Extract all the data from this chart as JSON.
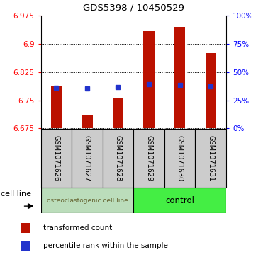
{
  "title": "GDS5398 / 10450529",
  "samples": [
    "GSM1071626",
    "GSM1071627",
    "GSM1071628",
    "GSM1071629",
    "GSM1071630",
    "GSM1071631"
  ],
  "bar_bottoms": [
    6.675,
    6.675,
    6.675,
    6.675,
    6.675,
    6.675
  ],
  "bar_tops": [
    6.787,
    6.712,
    6.756,
    6.933,
    6.944,
    6.875
  ],
  "blue_values": [
    6.783,
    6.782,
    6.784,
    6.792,
    6.791,
    6.786
  ],
  "ylim": [
    6.675,
    6.975
  ],
  "yticks_left": [
    6.675,
    6.75,
    6.825,
    6.9,
    6.975
  ],
  "yticks_right_vals": [
    0,
    25,
    50,
    75,
    100
  ],
  "group1_label": "osteoclastogenic cell line",
  "group2_label": "control",
  "cell_line_label": "cell line",
  "legend1": "transformed count",
  "legend2": "percentile rank within the sample",
  "bar_color": "#bb1100",
  "blue_color": "#2233cc",
  "group1_bg": "#bbddbb",
  "group2_bg": "#44ee44",
  "gray_bg": "#cccccc",
  "group1_text_color": "#666633",
  "group1_indices": [
    0,
    1,
    2
  ],
  "group2_indices": [
    3,
    4,
    5
  ],
  "bar_width": 0.35,
  "figsize": [
    3.71,
    3.63
  ],
  "dpi": 100
}
